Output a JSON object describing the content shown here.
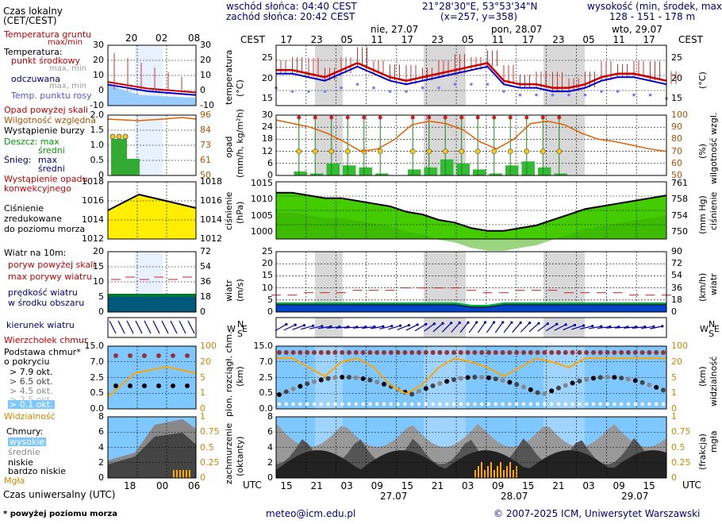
{
  "header": {
    "sunrise": "wschód słońca: 04:40 CEST",
    "sunset": "zachód słońca: 20:42 CEST",
    "coords": "21°28'30\"E, 53°53'34\"N",
    "grid": "(x=257, y=358)",
    "elevation_label": "wysokość (min, środek, max)",
    "elevation_values": "128 - 151 - 178 m",
    "local_time_label": "Czas lokalny",
    "local_time_tz": "(CET/CEST)",
    "cest": "CEST",
    "utc": "UTC",
    "utc_label": "Czas uniwersalny (UTC)",
    "footnote": "* powyżej poziomu morza",
    "email": "meteo@icm.edu.pl",
    "copyright": "© 2007-2025 ICM, Uniwersytet Warszawski"
  },
  "days": [
    {
      "label": "nie, 27.07"
    },
    {
      "label": "pon, 28.07"
    },
    {
      "label": "wto, 29.07"
    }
  ],
  "hours_top_main": [
    "17",
    "23",
    "05",
    "11",
    "17",
    "23",
    "05",
    "11",
    "17",
    "23",
    "05",
    "11",
    "17"
  ],
  "hours_bottom_main": [
    "15",
    "21",
    "03",
    "09",
    "15",
    "21",
    "03",
    "09",
    "15",
    "21",
    "03",
    "09",
    "15"
  ],
  "dates_bottom": [
    "27.07",
    "28.07",
    "29.07"
  ],
  "hours_top_left": [
    "20",
    "02",
    "08"
  ],
  "hours_bottom_left": [
    "18",
    "00",
    "06"
  ],
  "legend": {
    "temp_ground": "Temperatura gruntu",
    "temp_ground_sub": "max/min",
    "temperature": "Temperatura:",
    "mid_point": "punkt środkowy",
    "max_min": "max, min",
    "feels": "odczuwana",
    "max_min2": "max, min",
    "dew": "Temp. punktu rosy",
    "rain_above": "Opad powyżej skali",
    "rel_humidity": "Wilgotność względna",
    "storm": "Wystąpienie burzy",
    "rain": "Deszcz: max",
    "rain_mid": "średni",
    "snow": "Śnieg:",
    "snow_max": "max",
    "snow_mid": "średni",
    "precip_conv": "Wystąpienie opadu",
    "precip_conv2": "konwekcyjnego",
    "pressure1": "Ciśnienie",
    "pressure2": "zredukowane",
    "pressure3": "do poziomu morza",
    "wind10": "Wiatr na 10m:",
    "gust_above": "poryw powyżej skali",
    "gust_max": "max porywy wiatru",
    "wind_speed": "prędkość wiatru",
    "wind_area": "w środku obszaru",
    "wind_dir": "kierunek wiatru",
    "cloud_top": "Wierzchołek chmur",
    "cloud_base": "Podstawa chmur*",
    "cloud_cover": "o pokryciu",
    "ok79": "> 7.9 okt.",
    "ok65": "> 6.5 okt.",
    "ok45": "> 4.5 okt.",
    "ok25": "> 2.5 okt.",
    "ok01": "> 0.1 okt.",
    "visibility": "Widzialność",
    "clouds": "Chmury:",
    "high": "wysokie",
    "mid": "średnie",
    "low": "niskie",
    "very_low": "bardzo niskie",
    "fog": "Mgła"
  },
  "axes": {
    "temp": "temperatura",
    "temp_unit": "(°C)",
    "precip": "opad",
    "precip_unit": "(mm/h, kg/m²h)",
    "humid": "wilgotność wzgl.",
    "humid_unit": "(%)",
    "press": "ciśnienie",
    "press_unit": "(hPa)",
    "press_r": "ciśnienie",
    "press_r_unit": "(mm Hg)",
    "wind": "wiatr",
    "wind_unit": "(m/s)",
    "wind_r": "wiatr",
    "wind_r_unit": "(km/h)",
    "cloud": "pion. rozciągł. chm.",
    "cloud_unit": "(km)",
    "vis": "widzialność",
    "vis_unit": "(km)",
    "cover": "zachmurzenie",
    "cover_unit": "(oktanty)",
    "fog": "mgła",
    "fog_unit": "(frakcja)",
    "N": "N",
    "S": "S",
    "W": "W",
    "E": "E"
  },
  "ticks": {
    "temp_main_l": [
      "25",
      "20",
      "15"
    ],
    "temp_main_r": [
      "25",
      "20",
      "15"
    ],
    "temp_left_l": [
      "30",
      "20",
      "10",
      "0",
      "-10"
    ],
    "temp_left_r": [
      "30",
      "20",
      "10",
      "0",
      "-10"
    ],
    "precip_l": [
      "30",
      "24",
      "18",
      "12",
      "6",
      "0"
    ],
    "humid_r": [
      "100",
      "90",
      "80",
      "70",
      "60",
      "50"
    ],
    "precip_left": [
      "2.0",
      "1.5",
      "1.0",
      "0.5",
      "0"
    ],
    "humid_left": [
      "96",
      "84",
      "73",
      "61",
      "50"
    ],
    "press_main_l": [
      "1015",
      "1010",
      "1005",
      "1000"
    ],
    "press_main_r": [
      "761",
      "758",
      "754",
      "750"
    ],
    "press_left_l": [
      "1018",
      "1016",
      "1014",
      "1012"
    ],
    "press_left_r": [
      "1018",
      "1016",
      "1014",
      "1012"
    ],
    "wind_main_l": [
      "25",
      "20",
      "15",
      "10",
      "5",
      "0"
    ],
    "wind_main_r": [
      "90",
      "72",
      "54",
      "36",
      "18",
      "0"
    ],
    "wind_left_l": [
      "20",
      "15",
      "10",
      "5",
      "0"
    ],
    "wind_left_r": [
      "72",
      "54",
      "36",
      "18",
      "0"
    ],
    "cloud_main_l": [
      "15.0",
      "7.0",
      "2.5",
      "0.5",
      "0.0"
    ],
    "vis_main_r": [
      "100",
      "20",
      "5",
      "1",
      "0"
    ],
    "cloud_left_l": [
      "15.0",
      "7.0",
      "2.5",
      "0.5",
      "0.0"
    ],
    "vis_left_r": [
      "100",
      "20",
      "5",
      "1",
      "0"
    ],
    "cover_main_l": [
      "8",
      "6",
      "4",
      "2",
      "0"
    ],
    "fog_main_r": [
      "1",
      "0.75",
      "0.5",
      "0.25",
      "0"
    ],
    "cover_left_l": [
      "8",
      "6",
      "4",
      "2",
      "0"
    ],
    "fog_left_r": [
      "1",
      "0.75",
      "0.5",
      "0.25",
      "0"
    ]
  },
  "colors": {
    "temp": "#cc0000",
    "feels": "#0000cc",
    "dew": "#7777ff",
    "humidity": "#e06000",
    "rain": "#22aa22",
    "pressure": "#44cc00",
    "wind": "#007700",
    "night": "#d8d8d8",
    "sky": "#7fc8ff",
    "visibility": "#ffa500"
  },
  "chart_data": [
    {
      "type": "line",
      "name": "temperature",
      "x_hours_from_15utc_27": [
        0,
        3,
        6,
        9,
        12,
        15,
        18,
        21,
        24,
        27,
        30,
        33,
        36,
        39,
        42,
        45,
        48,
        51,
        54,
        57,
        60,
        63,
        66,
        69,
        72
      ],
      "temp_mid": [
        22,
        22,
        21,
        20,
        22,
        24,
        22,
        20,
        19,
        20,
        21,
        22,
        23,
        24,
        19,
        18,
        18,
        17,
        17,
        18,
        20,
        21,
        21,
        20,
        19
      ],
      "feels": [
        21,
        21,
        20,
        19,
        21,
        23,
        21,
        19,
        18,
        19,
        20,
        21,
        22,
        23,
        18,
        17,
        17,
        16,
        16,
        17,
        19,
        20,
        20,
        19,
        18
      ],
      "dew": [
        17,
        16,
        16,
        16,
        17,
        18,
        17,
        16,
        16,
        17,
        17,
        18,
        18,
        18,
        16,
        15,
        15,
        15,
        15,
        15,
        16,
        16,
        15,
        15,
        14
      ],
      "ylim": [
        12,
        29
      ]
    },
    {
      "type": "bar",
      "name": "precipitation",
      "units": "mm/h",
      "rain_mid_peaks": [
        0,
        2,
        1,
        6,
        5,
        4,
        1,
        0,
        3,
        4,
        8,
        6,
        3,
        1,
        5,
        7,
        4,
        1,
        0,
        0,
        0,
        0,
        0,
        0
      ],
      "humidity": [
        96,
        93,
        90,
        85,
        78,
        70,
        72,
        80,
        92,
        95,
        93,
        88,
        78,
        72,
        80,
        93,
        95,
        92,
        85,
        80,
        78,
        75,
        72,
        70
      ],
      "ylim": [
        0,
        30
      ]
    },
    {
      "type": "area",
      "name": "pressure",
      "units": "hPa",
      "values": [
        1012,
        1012,
        1011,
        1010,
        1010,
        1009,
        1008,
        1007,
        1005,
        1004,
        1002,
        1001,
        999,
        998,
        998,
        999,
        1000,
        1002,
        1004,
        1006,
        1007,
        1008,
        1009,
        1010,
        1011
      ],
      "ylim": [
        995,
        1016
      ]
    },
    {
      "type": "area",
      "name": "wind",
      "units": "m/s",
      "speed": [
        3,
        3,
        3,
        3,
        3,
        3,
        3,
        3,
        3,
        3,
        3,
        3,
        2,
        2,
        3,
        3,
        3,
        3,
        3,
        3,
        3,
        3,
        3,
        3,
        3
      ],
      "gust_max": [
        7,
        7,
        8,
        8,
        8,
        9,
        9,
        9,
        10,
        10,
        10,
        10,
        9,
        8,
        8,
        9,
        9,
        9,
        8,
        8,
        8,
        8,
        7,
        7,
        7
      ],
      "ylim": [
        0,
        25
      ]
    },
    {
      "type": "line",
      "name": "visibility",
      "units": "km",
      "values": [
        40,
        40,
        20,
        10,
        30,
        40,
        20,
        5,
        2,
        5,
        20,
        40,
        30,
        20,
        10,
        20,
        40,
        30,
        20,
        40,
        40,
        40,
        40,
        40,
        40
      ],
      "ylim": [
        0,
        100
      ]
    }
  ]
}
